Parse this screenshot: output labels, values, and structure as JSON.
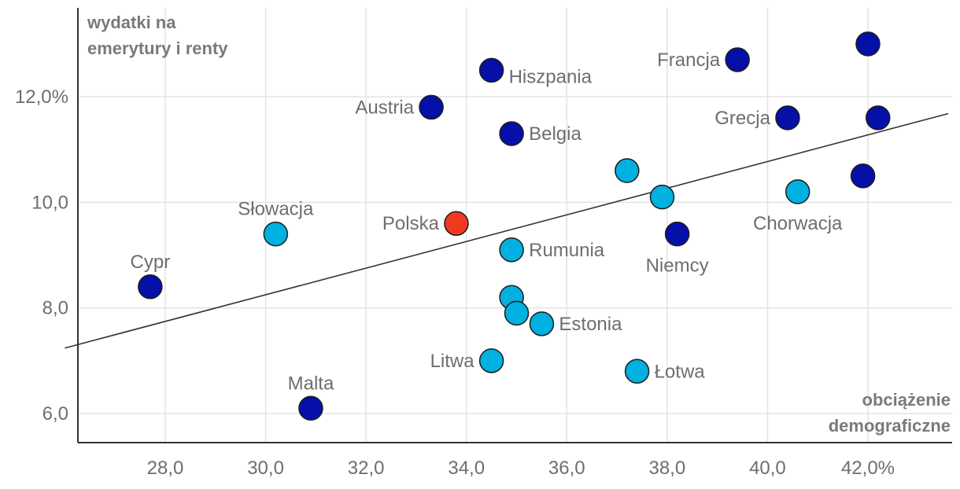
{
  "chart_data": {
    "type": "scatter",
    "title": "",
    "ylabel_lines": [
      "wydatki na",
      "emerytury i renty"
    ],
    "xlabel_lines": [
      "obciążenie",
      "demograficzne"
    ],
    "xlim": [
      26.0,
      43.6
    ],
    "ylim": [
      5.6,
      13.8
    ],
    "x_ticks": [
      28,
      30,
      32,
      34,
      36,
      38,
      40,
      42
    ],
    "x_tick_labels": [
      "28,0",
      "30,0",
      "32,0",
      "34,0",
      "36,0",
      "38,0",
      "40,0",
      "42,0%"
    ],
    "y_ticks": [
      6,
      8,
      10,
      12
    ],
    "y_tick_labels": [
      "6,0",
      "8,0",
      "10,0",
      "12,0%"
    ],
    "grid": true,
    "colors": {
      "dark": "#0510a8",
      "light": "#00b0e0",
      "highlight": "#f03a20"
    },
    "trendline": {
      "x": [
        26.0,
        43.6
      ],
      "y": [
        7.24,
        11.68
      ]
    },
    "points": [
      {
        "name": "Cypr",
        "label": "Cypr",
        "x": 27.7,
        "y": 8.4,
        "group": "dark",
        "pos": "above"
      },
      {
        "name": "Słowacja",
        "label": "Słowacja",
        "x": 30.2,
        "y": 9.4,
        "group": "light",
        "pos": "above"
      },
      {
        "name": "Malta",
        "label": "Malta",
        "x": 30.9,
        "y": 6.1,
        "group": "dark",
        "pos": "above"
      },
      {
        "name": "Austria",
        "label": "Austria",
        "x": 33.3,
        "y": 11.8,
        "group": "dark",
        "pos": "left"
      },
      {
        "name": "Polska",
        "label": "Polska",
        "x": 33.8,
        "y": 9.6,
        "group": "highlight",
        "pos": "left"
      },
      {
        "name": "Hiszpania",
        "label": "Hiszpania",
        "x": 34.5,
        "y": 12.5,
        "group": "dark",
        "pos": "right-low"
      },
      {
        "name": "Litwa",
        "label": "Litwa",
        "x": 34.5,
        "y": 7.0,
        "group": "light",
        "pos": "left"
      },
      {
        "name": "Belgia",
        "label": "Belgia",
        "x": 34.9,
        "y": 11.3,
        "group": "dark",
        "pos": "right"
      },
      {
        "name": "Rumunia",
        "label": "Rumunia",
        "x": 34.9,
        "y": 9.1,
        "group": "light",
        "pos": "right"
      },
      {
        "name": "",
        "label": "",
        "x": 34.9,
        "y": 8.2,
        "group": "light",
        "pos": "none"
      },
      {
        "name": "",
        "label": "",
        "x": 35.0,
        "y": 7.9,
        "group": "light",
        "pos": "none"
      },
      {
        "name": "Estonia",
        "label": "Estonia",
        "x": 35.5,
        "y": 7.7,
        "group": "light",
        "pos": "right"
      },
      {
        "name": "",
        "label": "",
        "x": 37.2,
        "y": 10.6,
        "group": "light",
        "pos": "none"
      },
      {
        "name": "Łotwa",
        "label": "Łotwa",
        "x": 37.4,
        "y": 6.8,
        "group": "light",
        "pos": "right"
      },
      {
        "name": "",
        "label": "",
        "x": 37.9,
        "y": 10.1,
        "group": "light",
        "pos": "none"
      },
      {
        "name": "Niemcy",
        "label": "Niemcy",
        "x": 38.2,
        "y": 9.4,
        "group": "dark",
        "pos": "below"
      },
      {
        "name": "Francja",
        "label": "Francja",
        "x": 39.4,
        "y": 12.7,
        "group": "dark",
        "pos": "left"
      },
      {
        "name": "Grecja",
        "label": "Grecja",
        "x": 40.4,
        "y": 11.6,
        "group": "dark",
        "pos": "left"
      },
      {
        "name": "Chorwacja",
        "label": "Chorwacja",
        "x": 40.6,
        "y": 10.2,
        "group": "light",
        "pos": "below"
      },
      {
        "name": "",
        "label": "",
        "x": 41.9,
        "y": 10.5,
        "group": "dark",
        "pos": "none"
      },
      {
        "name": "",
        "label": "",
        "x": 42.0,
        "y": 13.0,
        "group": "dark",
        "pos": "none"
      },
      {
        "name": "",
        "label": "",
        "x": 42.2,
        "y": 11.6,
        "group": "dark",
        "pos": "none"
      }
    ]
  }
}
